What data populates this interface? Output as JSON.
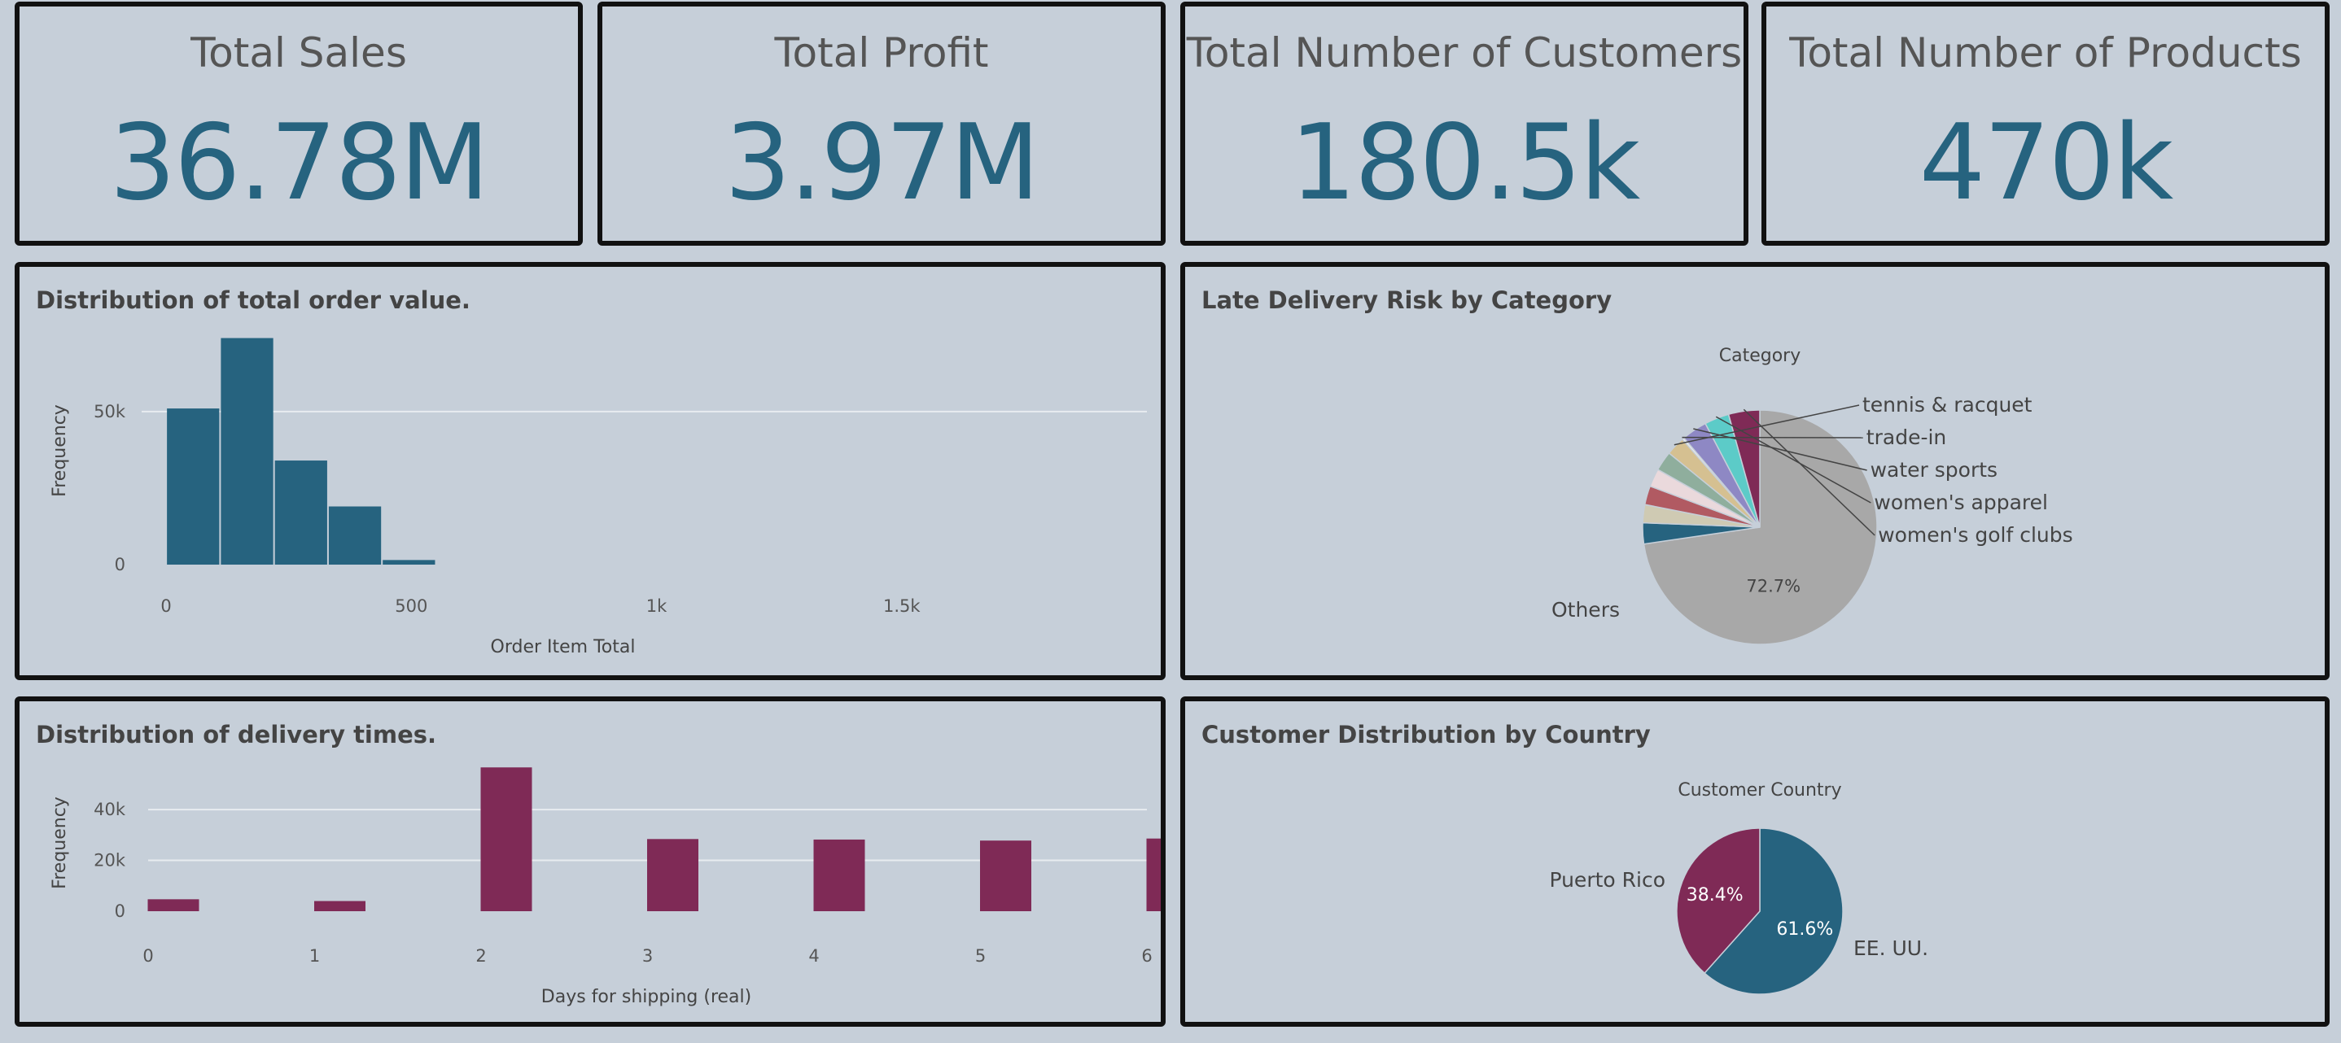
{
  "kpis": [
    {
      "title": "Total Sales",
      "value": "36.78M"
    },
    {
      "title": "Total Profit",
      "value": "3.97M"
    },
    {
      "title": "Total Number of Customers",
      "value": "180.5k"
    },
    {
      "title": "Total Number of Products",
      "value": "470k"
    }
  ],
  "colors": {
    "background": "#c6cfd9",
    "teal": "#26637f",
    "maroon": "#7f2a56",
    "text": "#444444",
    "axis_text": "#555555",
    "grid": "#e8ecf0"
  },
  "chart_data": [
    {
      "id": "order_value_hist",
      "type": "bar",
      "title": "Distribution of total order value.",
      "xlabel": "Order Item Total",
      "ylabel": "Frequency",
      "x_ticks": [
        0,
        500,
        1000,
        1500
      ],
      "x_tick_labels": [
        "0",
        "500",
        "1k",
        "1.5k"
      ],
      "y_ticks": [
        0,
        50000
      ],
      "y_tick_labels": [
        "0",
        "50k"
      ],
      "xlim": [
        -50,
        2000
      ],
      "ylim": [
        0,
        76000
      ],
      "bins": [
        {
          "x0": 0,
          "x1": 110,
          "count": 51000
        },
        {
          "x0": 110,
          "x1": 220,
          "count": 74000
        },
        {
          "x0": 220,
          "x1": 330,
          "count": 34000
        },
        {
          "x0": 330,
          "x1": 440,
          "count": 19000
        },
        {
          "x0": 440,
          "x1": 550,
          "count": 1500
        }
      ],
      "color": "#26637f",
      "grid": true
    },
    {
      "id": "late_risk_pie",
      "type": "pie",
      "title": "Late Delivery Risk by Category",
      "legend_title": "Category",
      "slices": [
        {
          "label": "Others",
          "value": 72.7,
          "color": "#a8a8a8",
          "pct_label": "72.7%"
        },
        {
          "label": "",
          "value": 2.9,
          "color": "#26637f"
        },
        {
          "label": "",
          "value": 2.5,
          "color": "#cfcab3"
        },
        {
          "label": "",
          "value": 2.6,
          "color": "#b15a62"
        },
        {
          "label": "",
          "value": 2.5,
          "color": "#ead9dc"
        },
        {
          "label": "",
          "value": 2.7,
          "color": "#8fae9d"
        },
        {
          "label": "tennis & racquet",
          "value": 2.6,
          "color": "#d5c091"
        },
        {
          "label": "trade-in",
          "value": 0.3,
          "color": "#f2f2f2"
        },
        {
          "label": "water sports",
          "value": 3.5,
          "color": "#8e88c4"
        },
        {
          "label": "women's apparel",
          "value": 3.4,
          "color": "#5ccbc8"
        },
        {
          "label": "women's golf clubs",
          "value": 4.3,
          "color": "#7f2a56"
        }
      ]
    },
    {
      "id": "delivery_times_bar",
      "type": "bar",
      "title": "Distribution of delivery times.",
      "xlabel": "Days for shipping (real)",
      "ylabel": "Frequency",
      "categories": [
        "0",
        "1",
        "2",
        "3",
        "4",
        "5",
        "6"
      ],
      "values": [
        4700,
        4000,
        56600,
        28400,
        28200,
        27800,
        28600
      ],
      "y_ticks": [
        0,
        20000,
        40000
      ],
      "y_tick_labels": [
        "0",
        "20k",
        "40k"
      ],
      "ylim": [
        0,
        57000
      ],
      "color": "#7f2a56",
      "grid": true
    },
    {
      "id": "country_pie",
      "type": "pie",
      "title": "Customer Distribution by Country",
      "legend_title": "Customer Country",
      "slices": [
        {
          "label": "EE. UU.",
          "value": 61.6,
          "color": "#26637f",
          "pct_label": "61.6%"
        },
        {
          "label": "Puerto Rico",
          "value": 38.4,
          "color": "#7f2a56",
          "pct_label": "38.4%"
        }
      ]
    }
  ]
}
